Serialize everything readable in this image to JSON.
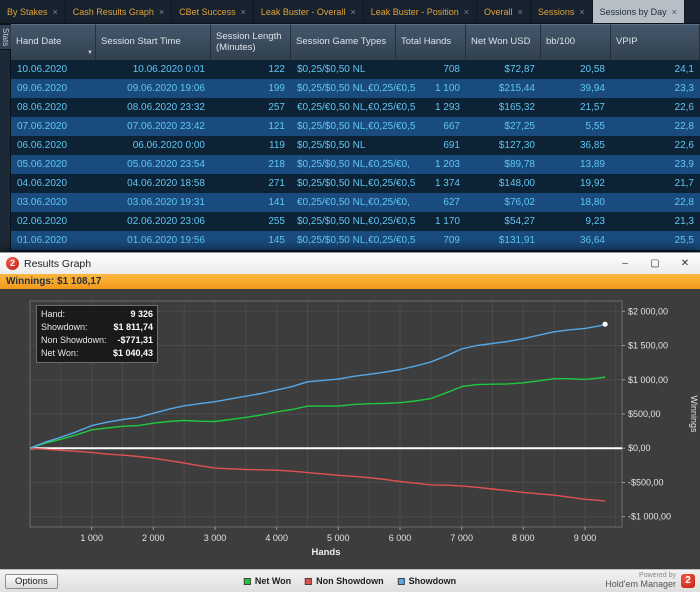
{
  "tab_bar": {
    "side_tab": "Stats",
    "close_glyph": "×",
    "tabs": [
      {
        "label": "By Stakes",
        "active": false
      },
      {
        "label": "Cash Results Graph",
        "active": false
      },
      {
        "label": "CBet Success",
        "active": false
      },
      {
        "label": "Leak Buster - Overall",
        "active": false
      },
      {
        "label": "Leak Buster - Position",
        "active": false
      },
      {
        "label": "Overall",
        "active": false
      },
      {
        "label": "Sessions",
        "active": false
      },
      {
        "label": "Sessions by Day",
        "active": true
      }
    ]
  },
  "table": {
    "filter_icon": "▼",
    "columns": [
      {
        "label": "Hand Date",
        "filter": true
      },
      {
        "label": "Session Start Time"
      },
      {
        "label": "Session Length (Minutes)"
      },
      {
        "label": "Session Game Types"
      },
      {
        "label": "Total Hands"
      },
      {
        "label": "Net Won USD"
      },
      {
        "label": "bb/100"
      },
      {
        "label": "VPIP"
      }
    ],
    "rows": [
      [
        "10.06.2020",
        "10.06.2020 0:01",
        "122",
        "$0,25/$0,50 NL",
        "708",
        "$72,87",
        "20,58",
        "24,1"
      ],
      [
        "09.06.2020",
        "09.06.2020 19:06",
        "199",
        "$0,25/$0,50 NL,€0,25/€0,5",
        "1 100",
        "$215,44",
        "39,94",
        "23,3"
      ],
      [
        "08.06.2020",
        "08.06.2020 23:32",
        "257",
        "€0,25/€0,50 NL,€0,25/€0,5",
        "1 293",
        "$165,32",
        "21,57",
        "22,6"
      ],
      [
        "07.06.2020",
        "07.06.2020 23:42",
        "121",
        "$0,25/$0,50 NL,€0,25/€0,5",
        "667",
        "$27,25",
        "5,55",
        "22,8"
      ],
      [
        "06.06.2020",
        "06.06.2020 0:00",
        "119",
        "$0,25/$0,50 NL",
        "691",
        "$127,30",
        "36,85",
        "22,6"
      ],
      [
        "05.06.2020",
        "05.06.2020 23:54",
        "218",
        "$0,25/$0,50 NL,€0,25/€0,",
        "1 203",
        "$89,78",
        "13,89",
        "23,9"
      ],
      [
        "04.06.2020",
        "04.06.2020 18:58",
        "271",
        "$0,25/$0,50 NL,€0,25/€0,5",
        "1 374",
        "$148,00",
        "19,92",
        "21,7"
      ],
      [
        "03.06.2020",
        "03.06.2020 19:31",
        "141",
        "€0,25/€0,50 NL,€0,25/€0,",
        "627",
        "$76,02",
        "18,80",
        "22,8"
      ],
      [
        "02.06.2020",
        "02.06.2020 23:06",
        "255",
        "$0,25/$0,50 NL,€0,25/€0,5",
        "1 170",
        "$54,27",
        "9,23",
        "21,3"
      ],
      [
        "01.06.2020",
        "01.06.2020 19:56",
        "145",
        "$0,25/$0,50 NL,€0,25/€0,5",
        "709",
        "$131,91",
        "36,64",
        "25,5"
      ]
    ]
  },
  "graph_window": {
    "title": "Results Graph",
    "logo_glyph": "2",
    "window_controls": {
      "minimize": "–",
      "maximize": "▢",
      "close": "✕"
    },
    "winnings_bar": "Winnings: $1 108,17",
    "tooltip": {
      "rows": [
        {
          "label": "Hand:",
          "value": "9 326"
        },
        {
          "label": "Showdown:",
          "value": "$1 811,74"
        },
        {
          "label": "Non Showdown:",
          "value": "-$771,31"
        },
        {
          "label": "Net Won:",
          "value": "$1 040,43"
        }
      ]
    },
    "options_button": "Options",
    "powered_by": "Powered by",
    "brand": "Hold'em Manager",
    "legend": [
      {
        "label": "Net Won",
        "color": "#1fc93c"
      },
      {
        "label": "Non Showdown",
        "color": "#e05151"
      },
      {
        "label": "Showdown",
        "color": "#55a8e8"
      }
    ]
  },
  "chart_data": {
    "type": "line",
    "title": "Results Graph",
    "xlabel": "Hands",
    "ylabel": "Winnings",
    "grid": true,
    "legend_position": "bottom",
    "xlim": [
      0,
      9600
    ],
    "ylim": [
      -1150,
      2150
    ],
    "x_ticks": [
      {
        "v": 1000,
        "label": "1 000"
      },
      {
        "v": 2000,
        "label": "2 000"
      },
      {
        "v": 3000,
        "label": "3 000"
      },
      {
        "v": 4000,
        "label": "4 000"
      },
      {
        "v": 5000,
        "label": "5 000"
      },
      {
        "v": 6000,
        "label": "6 000"
      },
      {
        "v": 7000,
        "label": "7 000"
      },
      {
        "v": 8000,
        "label": "8 000"
      },
      {
        "v": 9000,
        "label": "9 000"
      }
    ],
    "y_ticks": [
      {
        "v": 2000,
        "label": "$2 000,00"
      },
      {
        "v": 1500,
        "label": "$1 500,00"
      },
      {
        "v": 1000,
        "label": "$1 000,00"
      },
      {
        "v": 500,
        "label": "$500,00"
      },
      {
        "v": 0,
        "label": "$0,00"
      },
      {
        "v": -500,
        "label": "-$500,00"
      },
      {
        "v": -1000,
        "label": "-$1 000,00"
      }
    ],
    "x": [
      0,
      250,
      500,
      750,
      1000,
      1250,
      1500,
      1750,
      2000,
      2250,
      2500,
      2750,
      3000,
      3250,
      3500,
      3750,
      4000,
      4250,
      4500,
      4750,
      5000,
      5250,
      5500,
      5750,
      6000,
      6250,
      6500,
      6750,
      7000,
      7250,
      7500,
      7750,
      8000,
      8250,
      8500,
      8750,
      9000,
      9250,
      9326
    ],
    "series": [
      {
        "name": "Net Won",
        "color": "#1fc93c",
        "values": [
          0,
          75,
          130,
          195,
          270,
          295,
          320,
          330,
          365,
          390,
          405,
          395,
          390,
          420,
          450,
          485,
          530,
          565,
          615,
          615,
          615,
          640,
          650,
          655,
          665,
          690,
          725,
          810,
          900,
          930,
          935,
          940,
          955,
          985,
          1015,
          1015,
          1005,
          1028,
          1040.43
        ]
      },
      {
        "name": "Non Showdown",
        "color": "#e05151",
        "values": [
          0,
          -15,
          -30,
          -45,
          -60,
          -85,
          -100,
          -120,
          -145,
          -180,
          -215,
          -255,
          -290,
          -300,
          -310,
          -315,
          -320,
          -335,
          -355,
          -375,
          -395,
          -410,
          -430,
          -455,
          -485,
          -510,
          -535,
          -540,
          -550,
          -570,
          -595,
          -620,
          -645,
          -665,
          -685,
          -715,
          -745,
          -762,
          -771.31
        ]
      },
      {
        "name": "Showdown",
        "color": "#55a8e8",
        "values": [
          0,
          90,
          160,
          240,
          330,
          380,
          420,
          450,
          510,
          570,
          620,
          650,
          680,
          720,
          760,
          800,
          850,
          900,
          970,
          990,
          1010,
          1050,
          1080,
          1110,
          1150,
          1200,
          1260,
          1350,
          1450,
          1500,
          1530,
          1560,
          1600,
          1650,
          1700,
          1730,
          1750,
          1790,
          1811.74
        ]
      }
    ],
    "cursor_point": {
      "series": "Showdown",
      "x": 9326,
      "y": 1811.74
    },
    "zero_line": {
      "value": 0,
      "color": "#ffffff"
    }
  }
}
